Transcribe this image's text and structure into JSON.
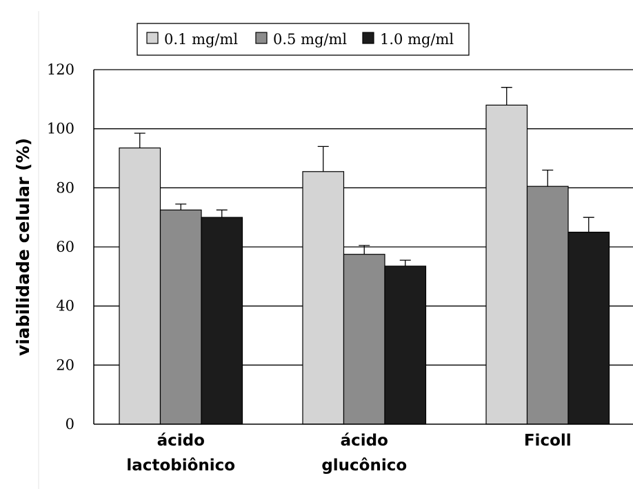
{
  "chart_data": {
    "type": "bar",
    "categories": [
      [
        "ácido",
        "lactobiônico"
      ],
      [
        "ácido",
        "glucônico"
      ],
      [
        "Ficoll"
      ]
    ],
    "series": [
      {
        "name": "0.1 mg/ml",
        "color": "#d4d4d4",
        "values": [
          93.5,
          85.5,
          108
        ],
        "errors": [
          5,
          8.5,
          6
        ]
      },
      {
        "name": "0.5 mg/ml",
        "color": "#8c8c8c",
        "values": [
          72.5,
          57.5,
          80.5
        ],
        "errors": [
          2,
          3,
          5.5
        ]
      },
      {
        "name": "1.0 mg/ml",
        "color": "#1c1c1c",
        "values": [
          70,
          53.5,
          65
        ],
        "errors": [
          2.5,
          2,
          5
        ]
      }
    ],
    "ylabel": "viabilidade celular (%)",
    "xlabel": "",
    "ylim": [
      0,
      120
    ],
    "yticks": [
      0,
      20,
      40,
      60,
      80,
      100,
      120
    ],
    "grid": true,
    "legend_position": "top"
  }
}
